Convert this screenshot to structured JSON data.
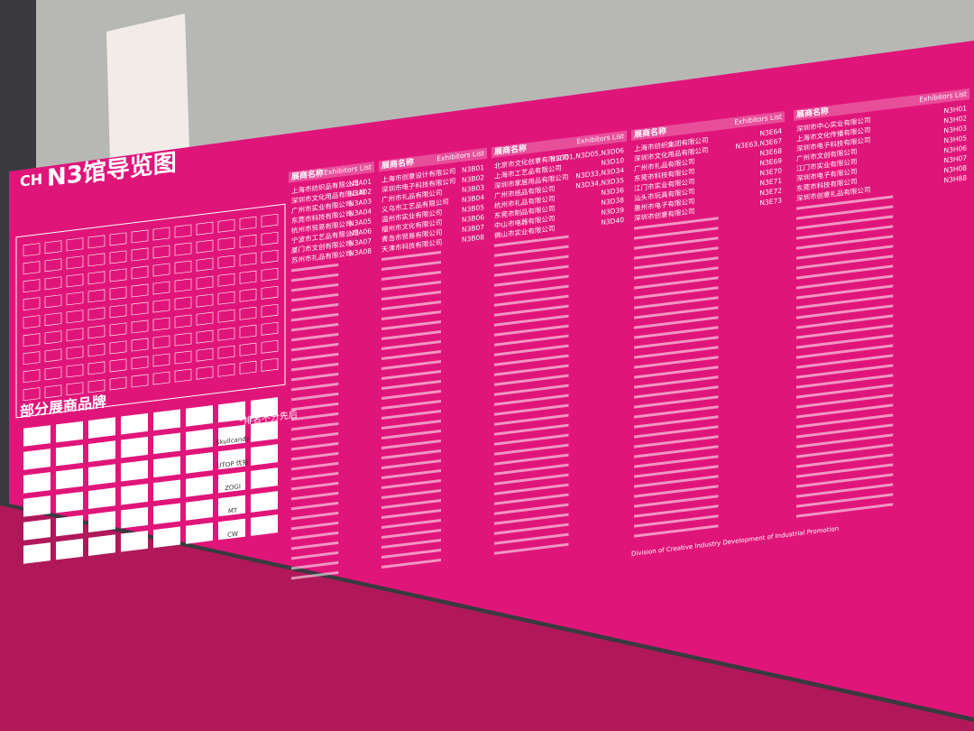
{
  "board": {
    "title": "N3馆导览图",
    "logo": "CH",
    "brands_heading": "部分展商品牌",
    "brands_note": "*排名不分先后",
    "brands": [
      "Skullcandy",
      "UTOP 优拓",
      "ZOGI",
      "MT",
      "CW"
    ],
    "lists": [
      {
        "header": "展商名称",
        "header_en": "Exhibitors List",
        "rows": [
          [
            "上海市纺织品有限公司",
            "N3A01"
          ],
          [
            "深圳市文化用品有限公司",
            "N3A02"
          ],
          [
            "广州市实业有限公司",
            "N3A03"
          ],
          [
            "东莞市科技有限公司",
            "N3A04"
          ],
          [
            "杭州市贸易有限公司",
            "N3A05"
          ],
          [
            "宁波市工艺品有限公司",
            "N3A06"
          ],
          [
            "厦门市文创有限公司",
            "N3A07"
          ],
          [
            "苏州市礼品有限公司",
            "N3A08"
          ]
        ]
      },
      {
        "header": "展商名称",
        "header_en": "Exhibitors List",
        "rows": [
          [
            "上海市创意设计有限公司",
            "N3B01"
          ],
          [
            "深圳市电子科技有限公司",
            "N3B02"
          ],
          [
            "广州市礼品有限公司",
            "N3B03"
          ],
          [
            "义乌市工艺品有限公司",
            "N3B04"
          ],
          [
            "温州市实业有限公司",
            "N3B05"
          ],
          [
            "福州市文化有限公司",
            "N3B06"
          ],
          [
            "青岛市贸易有限公司",
            "N3B07"
          ],
          [
            "天津市科技有限公司",
            "N3B08"
          ]
        ]
      },
      {
        "header": "展商名称",
        "header_en": "Exhibitors List",
        "rows": [
          [
            "北京市文化创意有限公司",
            "N3D01,N3D05,N3D06"
          ],
          [
            "上海市工艺品有限公司",
            "N3D10"
          ],
          [
            "深圳市家居用品有限公司",
            "N3D33,N3D34"
          ],
          [
            "广州市纸品有限公司",
            "N3D34,N3D35"
          ],
          [
            "杭州市礼品有限公司",
            "N3D36"
          ],
          [
            "东莞市制品有限公司",
            "N3D38"
          ],
          [
            "中山市电器有限公司",
            "N3D39"
          ],
          [
            "佛山市实业有限公司",
            "N3D40"
          ]
        ]
      },
      {
        "header": "展商名称",
        "header_en": "Exhibitors List",
        "rows": [
          [
            "上海市纺织集团有限公司",
            "N3E64"
          ],
          [
            "深圳市文化用品有限公司",
            "N3E63,N3E67"
          ],
          [
            "广州市礼品有限公司",
            "N3E68"
          ],
          [
            "东莞市科技有限公司",
            "N3E69"
          ],
          [
            "江门市实业有限公司",
            "N3E70"
          ],
          [
            "汕头市玩具有限公司",
            "N3E71"
          ],
          [
            "惠州市电子有限公司",
            "N3E72"
          ],
          [
            "深圳市创意有限公司",
            "N3E73"
          ]
        ]
      },
      {
        "header": "展商名称",
        "header_en": "Exhibitors List",
        "rows": [
          [
            "深圳市中心实业有限公司",
            "N3H01"
          ],
          [
            "上海市文化传播有限公司",
            "N3H02"
          ],
          [
            "深圳市电子科技有限公司",
            "N3H03"
          ],
          [
            "广州市文创有限公司",
            "N3H05"
          ],
          [
            "江门市实业有限公司",
            "N3H06"
          ],
          [
            "深圳市电子有限公司",
            "N3H07"
          ],
          [
            "东莞市科技有限公司",
            "N3H08"
          ],
          [
            "深圳市创意礼品有限公司",
            "N3H88"
          ]
        ]
      }
    ],
    "division": "Division of Creative Industry Development of Industrial Promotion"
  }
}
